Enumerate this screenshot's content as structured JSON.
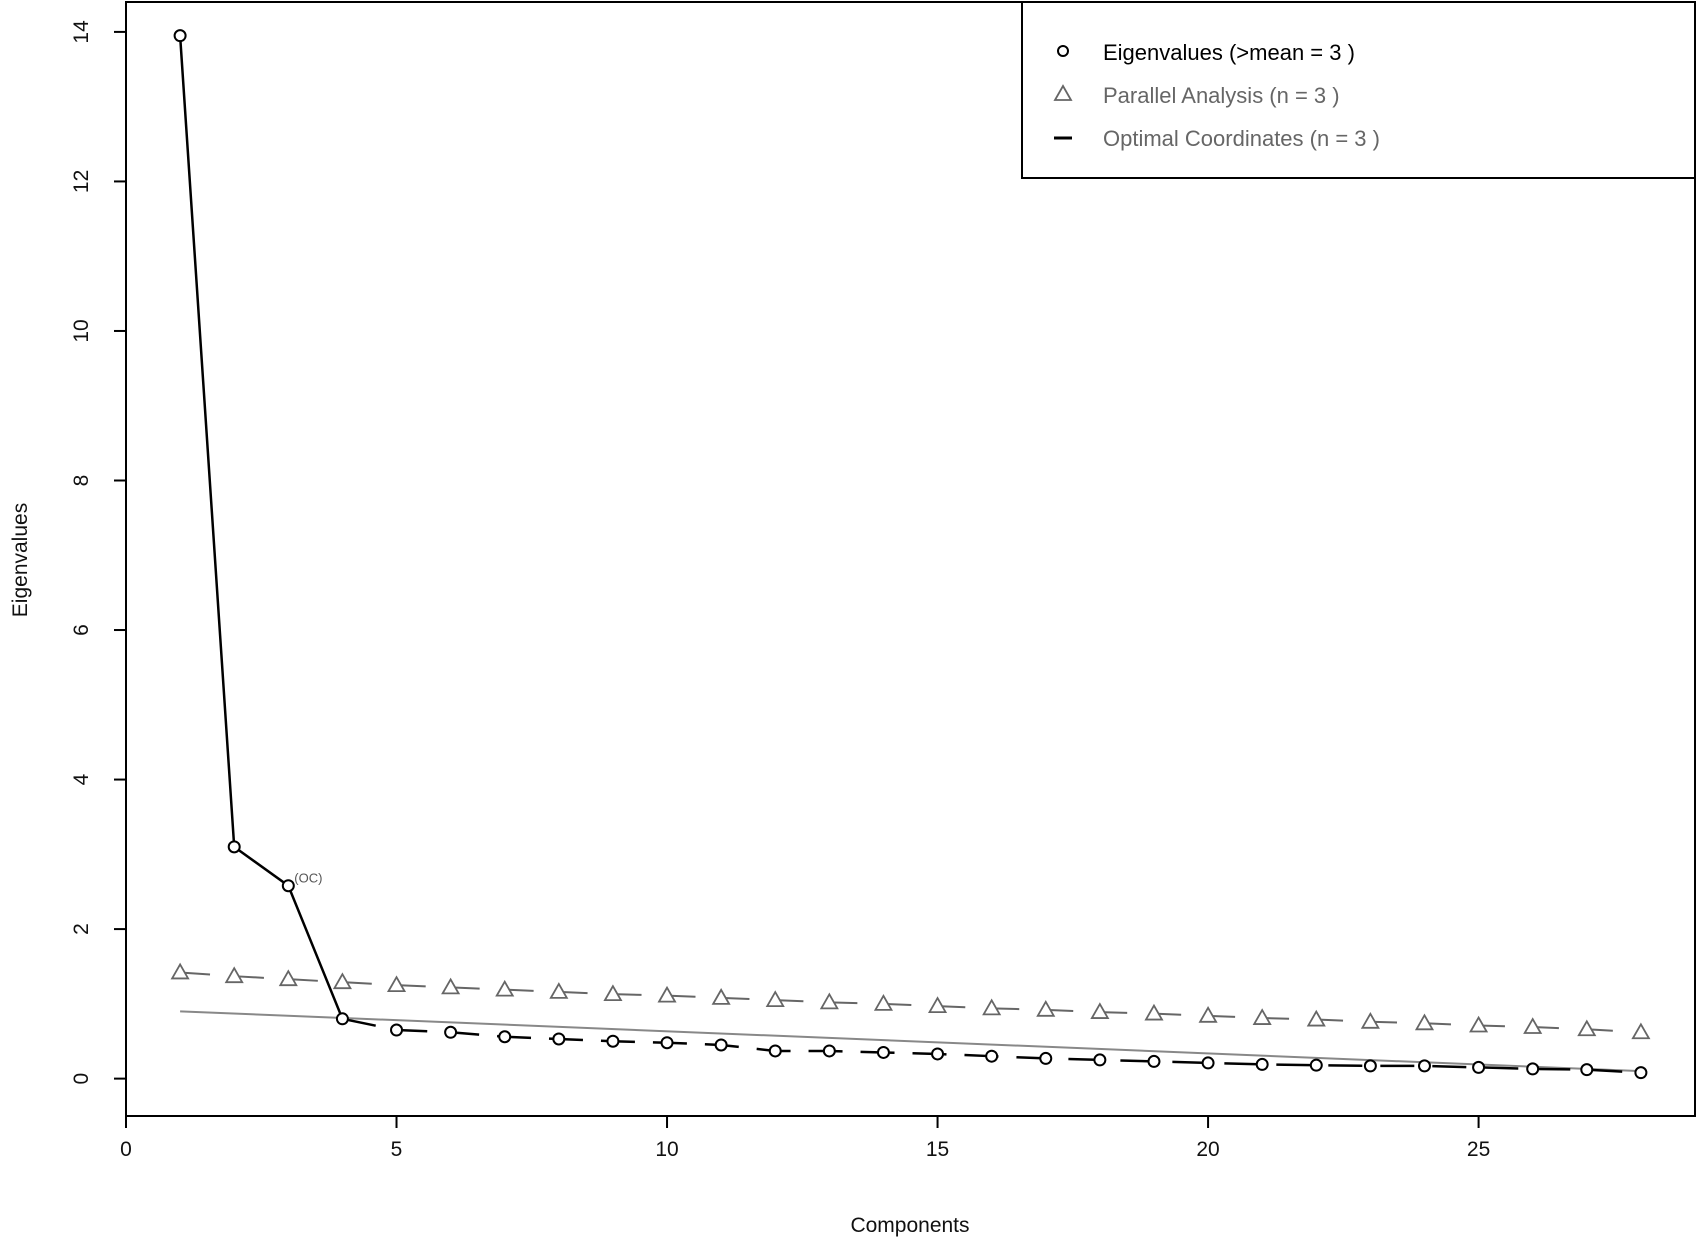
{
  "chart_data": {
    "type": "line",
    "xlabel": "Components",
    "ylabel": "Eigenvalues",
    "xlim": [
      0,
      29
    ],
    "ylim": [
      -0.5,
      14.4
    ],
    "x_ticks": [
      0,
      5,
      10,
      15,
      20,
      25
    ],
    "y_ticks": [
      0,
      2,
      4,
      6,
      8,
      10,
      12,
      14
    ],
    "grid": false,
    "legend_position": "top-right",
    "legend": [
      {
        "label": "Eigenvalues (>mean  =  3 )",
        "marker": "circle",
        "color": "#000000"
      },
      {
        "label": "Parallel Analysis (n =  3 )",
        "marker": "triangle",
        "color": "#666666"
      },
      {
        "label": "Optimal Coordinates (n =  3 )",
        "marker": "dash",
        "color": "#666666"
      }
    ],
    "x": [
      1,
      2,
      3,
      4,
      5,
      6,
      7,
      8,
      9,
      10,
      11,
      12,
      13,
      14,
      15,
      16,
      17,
      18,
      19,
      20,
      21,
      22,
      23,
      24,
      25,
      26,
      27,
      28
    ],
    "series": [
      {
        "name": "Eigenvalues (>mean  =  3 )",
        "marker": "circle",
        "color": "#000000",
        "values": [
          13.95,
          3.1,
          2.58,
          0.8,
          0.65,
          0.62,
          0.56,
          0.53,
          0.5,
          0.48,
          0.45,
          0.37,
          0.37,
          0.35,
          0.33,
          0.3,
          0.27,
          0.25,
          0.23,
          0.21,
          0.19,
          0.18,
          0.17,
          0.17,
          0.15,
          0.13,
          0.12,
          0.08
        ]
      },
      {
        "name": "Parallel Analysis (n =  3 )",
        "marker": "triangle",
        "color": "#666666",
        "values": [
          1.42,
          1.37,
          1.33,
          1.29,
          1.25,
          1.22,
          1.19,
          1.16,
          1.13,
          1.11,
          1.08,
          1.05,
          1.02,
          1.0,
          0.97,
          0.94,
          0.92,
          0.89,
          0.87,
          0.84,
          0.81,
          0.79,
          0.76,
          0.74,
          0.71,
          0.69,
          0.66,
          0.62
        ]
      },
      {
        "name": "Optimal Coordinates (n =  3 )",
        "marker": "none",
        "color": "#888888",
        "line": {
          "x": [
            1,
            28
          ],
          "y": [
            0.9,
            0.1
          ]
        }
      }
    ],
    "annotations": [
      {
        "text": "(OC)",
        "x": 3,
        "y": 2.58
      }
    ]
  }
}
